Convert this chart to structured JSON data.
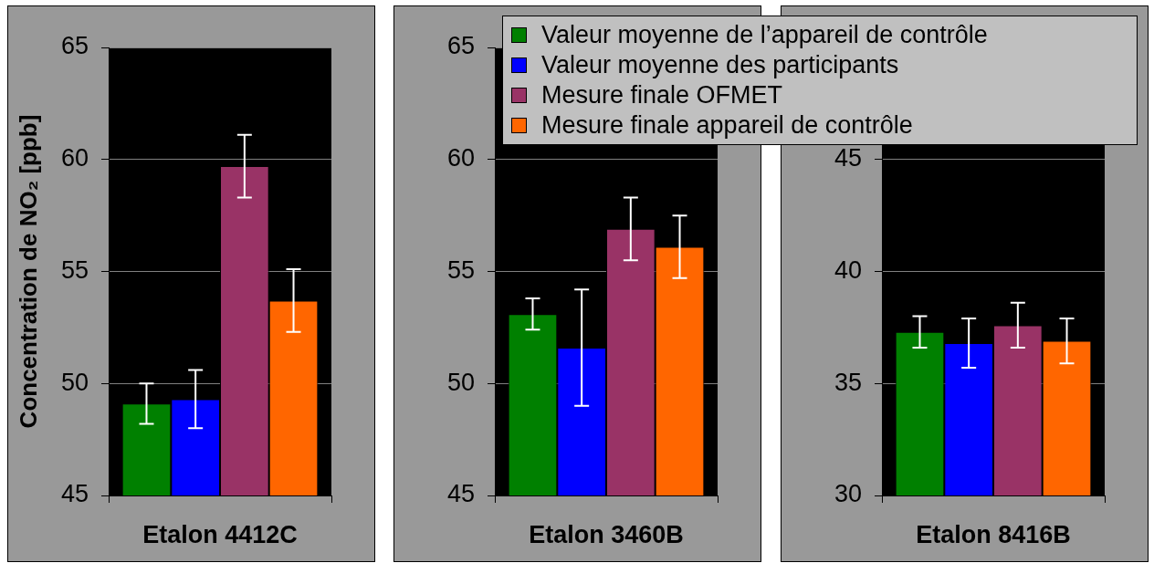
{
  "chart_data": [
    {
      "type": "bar",
      "categories": [
        "Etalon 4412C"
      ],
      "ylabel": "Concentration de NO₂ [ppb]",
      "ylim": [
        45,
        65
      ],
      "yticks": [
        45,
        50,
        55,
        60,
        65
      ],
      "grid": "y",
      "series": [
        {
          "color": "#008000",
          "values": [
            49.1
          ],
          "errors": [
            0.9
          ]
        },
        {
          "color": "#0000ff",
          "values": [
            49.3
          ],
          "errors": [
            1.3
          ]
        },
        {
          "color": "#993366",
          "values": [
            59.7
          ],
          "errors": [
            1.4
          ]
        },
        {
          "color": "#ff6600",
          "values": [
            53.7
          ],
          "errors": [
            1.4
          ]
        }
      ]
    },
    {
      "type": "bar",
      "categories": [
        "Etalon 3460B"
      ],
      "ylim": [
        45,
        65
      ],
      "yticks": [
        45,
        50,
        55,
        60,
        65
      ],
      "grid": "y",
      "legend": "top right",
      "series": [
        {
          "name": "Valeur moyenne de l’appareil de contrôle",
          "color": "#008000",
          "values": [
            53.1
          ],
          "errors": [
            0.7
          ]
        },
        {
          "name": "Valeur moyenne des participants",
          "color": "#0000ff",
          "values": [
            51.6
          ],
          "errors": [
            2.6
          ]
        },
        {
          "name": "Mesure finale OFMET",
          "color": "#993366",
          "values": [
            56.9
          ],
          "errors": [
            1.4
          ]
        },
        {
          "name": "Mesure finale appareil de contrôle",
          "color": "#ff6600",
          "values": [
            56.1
          ],
          "errors": [
            1.4
          ]
        }
      ]
    },
    {
      "type": "bar",
      "categories": [
        "Etalon 8416B"
      ],
      "ylim": [
        30,
        50
      ],
      "yticks": [
        30,
        35,
        40,
        45
      ],
      "grid": "y",
      "series": [
        {
          "color": "#008000",
          "values": [
            37.3
          ],
          "errors": [
            0.7
          ]
        },
        {
          "color": "#0000ff",
          "values": [
            36.8
          ],
          "errors": [
            1.1
          ]
        },
        {
          "color": "#993366",
          "values": [
            37.6
          ],
          "errors": [
            1.0
          ]
        },
        {
          "color": "#ff6600",
          "values": [
            36.9
          ],
          "errors": [
            1.0
          ]
        }
      ]
    }
  ]
}
